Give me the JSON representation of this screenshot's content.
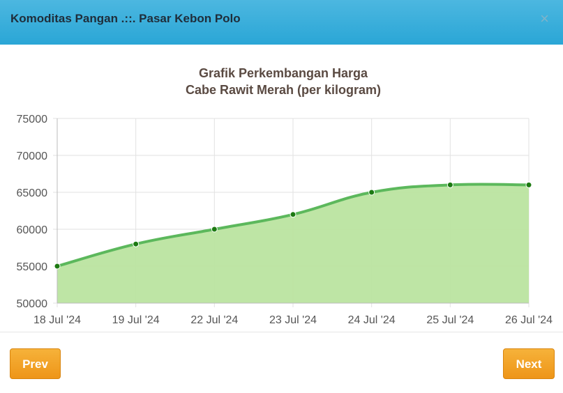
{
  "modal": {
    "title": "Komoditas Pangan .::. Pasar Kebon Polo",
    "close_label": "×"
  },
  "footer": {
    "prev_label": "Prev",
    "next_label": "Next"
  },
  "colors": {
    "header": "#34ade0",
    "line": "#5cb85c",
    "area": "#bbe4a0",
    "point": "#1d7a12",
    "button": "#f0a030"
  },
  "chart_data": {
    "type": "area",
    "title": "Grafik Perkembangan Harga",
    "subtitle": "Cabe Rawit Merah (per kilogram)",
    "categories": [
      "18 Jul '24",
      "19 Jul '24",
      "22 Jul '24",
      "23 Jul '24",
      "24 Jul '24",
      "25 Jul '24",
      "26 Jul '24"
    ],
    "values": [
      55000,
      58000,
      60000,
      62000,
      65000,
      66000,
      66000
    ],
    "ylim": [
      50000,
      75000
    ],
    "yticks": [
      50000,
      55000,
      60000,
      65000,
      70000,
      75000
    ],
    "grid": true,
    "xlabel": "",
    "ylabel": ""
  }
}
